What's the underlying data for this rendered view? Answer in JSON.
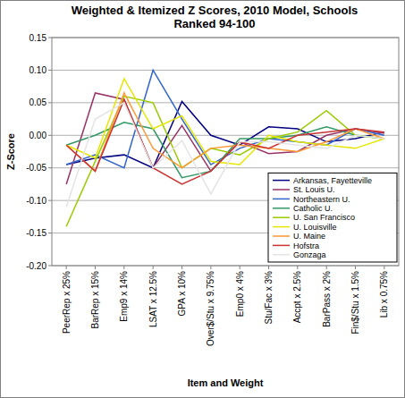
{
  "chart_data": {
    "type": "line",
    "title": "Weighted & Itemized Z Scores, 2010 Model, Schools Ranked 94-100",
    "x_label": "Item and Weight",
    "y_label": "Z-Score",
    "categories": [
      "PeerRep x 25%",
      "BarRep x 15%",
      "Emp9 x 14%",
      "LSAT x 12.5%",
      "GPA x 10%",
      "Over$/Stu x 9.75%",
      "Emp0 x 4%",
      "Stu/Fac x 3%",
      "Accpt x 2.5%",
      "BarPass x 2%",
      "Fin$/Stu x 1.5%",
      "Lib x 0.75%"
    ],
    "series": [
      {
        "name": "Arkansas, Fayetteville",
        "color": "#000080",
        "values": [
          -0.045,
          -0.035,
          -0.03,
          -0.05,
          0.052,
          0.0,
          -0.015,
          0.013,
          0.01,
          -0.01,
          -0.005,
          0.005
        ]
      },
      {
        "name": "St. Louis U.",
        "color": "#993366",
        "values": [
          -0.075,
          0.065,
          0.055,
          -0.05,
          0.015,
          -0.055,
          -0.01,
          -0.028,
          -0.025,
          0.0,
          0.01,
          0.003
        ]
      },
      {
        "name": "Northeastern U.",
        "color": "#3366CC",
        "values": [
          -0.045,
          -0.03,
          -0.05,
          0.1,
          0.025,
          -0.045,
          -0.02,
          -0.005,
          -0.01,
          -0.015,
          0.01,
          0.0
        ]
      },
      {
        "name": "Catholic U.",
        "color": "#339966",
        "values": [
          -0.015,
          0.0,
          0.02,
          0.01,
          -0.065,
          -0.055,
          -0.005,
          -0.005,
          0.0,
          0.013,
          0.0,
          -0.005
        ]
      },
      {
        "name": "U. San Francisco",
        "color": "#99CC00",
        "values": [
          -0.14,
          -0.04,
          0.06,
          0.05,
          -0.05,
          -0.02,
          -0.03,
          -0.005,
          0.005,
          0.038,
          0.0,
          -0.005
        ]
      },
      {
        "name": "U. Louisville",
        "color": "#E6E600",
        "values": [
          -0.015,
          -0.035,
          0.087,
          0.01,
          0.03,
          -0.04,
          -0.045,
          0.0,
          -0.01,
          -0.015,
          -0.02,
          -0.005
        ]
      },
      {
        "name": "U. Maine",
        "color": "#FF9933",
        "values": [
          -0.015,
          -0.055,
          0.065,
          -0.02,
          -0.05,
          -0.02,
          -0.015,
          -0.02,
          -0.025,
          -0.01,
          0.01,
          -0.005
        ]
      },
      {
        "name": "Hofstra",
        "color": "#CC3333",
        "values": [
          -0.015,
          -0.055,
          0.055,
          -0.05,
          -0.075,
          -0.055,
          -0.01,
          -0.02,
          0.0,
          0.005,
          0.01,
          0.005
        ]
      },
      {
        "name": "Gonzaga",
        "color": "#E4E4E4",
        "values": [
          -0.11,
          0.025,
          0.05,
          -0.05,
          -0.008,
          -0.09,
          -0.01,
          -0.01,
          -0.015,
          -0.02,
          0.0,
          -0.005
        ]
      }
    ],
    "ylim": [
      -0.2,
      0.15
    ],
    "yticks": [
      {
        "value": -0.2,
        "label": "-0.20"
      },
      -0.15,
      {
        "value": -0.1,
        "label": "-0.10"
      },
      -0.05,
      {
        "value": 0,
        "label": "0.00"
      },
      0.05,
      {
        "value": 0.1,
        "label": "0.10"
      },
      0.15
    ],
    "grid": true,
    "legend": "bottom-right"
  }
}
